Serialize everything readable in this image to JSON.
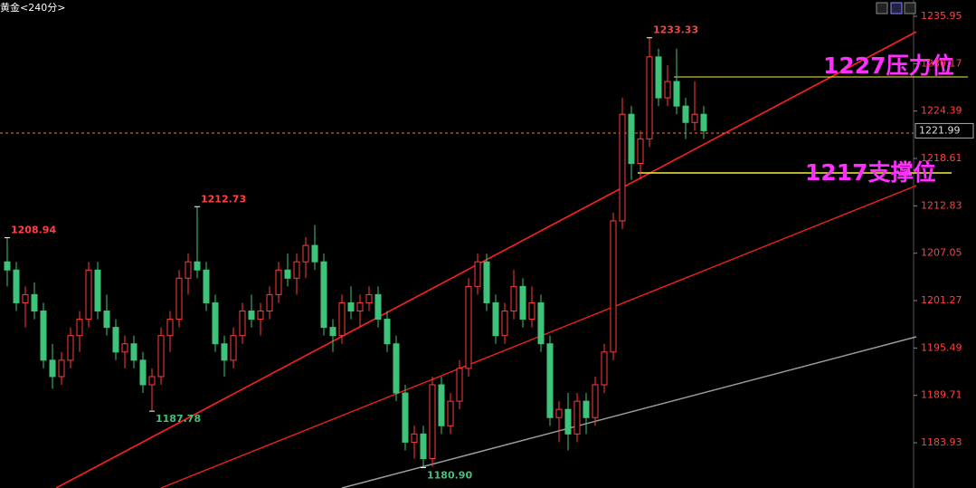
{
  "chart_data": {
    "type": "candlestick",
    "title": "黄金<240分>",
    "up_color": "#ff3c3c",
    "down_color": "#3ec37a",
    "ylim": [
      1178.41,
      1237.94
    ],
    "yticks": [
      1235.95,
      1230.17,
      1224.39,
      1218.61,
      1212.83,
      1207.05,
      1201.27,
      1195.49,
      1189.71,
      1183.93
    ],
    "ohlc": [
      [
        1206,
        1208.94,
        1203,
        1205
      ],
      [
        1205,
        1206,
        1200,
        1201
      ],
      [
        1201,
        1203,
        1198,
        1202
      ],
      [
        1202,
        1203.5,
        1199,
        1200
      ],
      [
        1200,
        1201,
        1193,
        1194
      ],
      [
        1194,
        1196,
        1190.5,
        1192
      ],
      [
        1192,
        1195,
        1191,
        1194
      ],
      [
        1194,
        1198,
        1193,
        1197
      ],
      [
        1197,
        1200,
        1195,
        1199
      ],
      [
        1199,
        1206,
        1198,
        1205
      ],
      [
        1205,
        1206,
        1199,
        1200
      ],
      [
        1200,
        1202,
        1197,
        1198
      ],
      [
        1198,
        1199,
        1194,
        1195
      ],
      [
        1195,
        1197,
        1193,
        1196
      ],
      [
        1196,
        1197,
        1193,
        1194
      ],
      [
        1194,
        1195,
        1190,
        1191
      ],
      [
        1191,
        1193,
        1187.78,
        1192
      ],
      [
        1192,
        1198,
        1191,
        1197
      ],
      [
        1197,
        1200,
        1195,
        1199
      ],
      [
        1199,
        1205,
        1198,
        1204
      ],
      [
        1204,
        1207,
        1202,
        1206
      ],
      [
        1206,
        1212.73,
        1204,
        1205
      ],
      [
        1205,
        1206,
        1200,
        1201
      ],
      [
        1201,
        1202,
        1195,
        1196
      ],
      [
        1196,
        1197,
        1192,
        1194
      ],
      [
        1194,
        1198,
        1193,
        1197
      ],
      [
        1197,
        1201,
        1196,
        1200
      ],
      [
        1200,
        1202,
        1198,
        1199
      ],
      [
        1199,
        1201,
        1197,
        1200
      ],
      [
        1200,
        1203,
        1199,
        1202
      ],
      [
        1202,
        1206,
        1201,
        1205
      ],
      [
        1205,
        1207,
        1203,
        1204
      ],
      [
        1204,
        1207,
        1202,
        1206
      ],
      [
        1206,
        1209,
        1204,
        1208
      ],
      [
        1208,
        1210.5,
        1205,
        1206
      ],
      [
        1206,
        1207,
        1197,
        1198
      ],
      [
        1198,
        1199,
        1195,
        1197
      ],
      [
        1197,
        1202,
        1196,
        1201
      ],
      [
        1201,
        1203,
        1199,
        1200
      ],
      [
        1200,
        1202,
        1198,
        1201
      ],
      [
        1201,
        1203,
        1200,
        1202
      ],
      [
        1202,
        1203,
        1198,
        1199
      ],
      [
        1199,
        1200,
        1195,
        1196
      ],
      [
        1196,
        1197,
        1189,
        1190
      ],
      [
        1190,
        1191,
        1183,
        1184
      ],
      [
        1184,
        1186,
        1182,
        1185
      ],
      [
        1185,
        1186,
        1180.9,
        1182
      ],
      [
        1182,
        1192,
        1181,
        1191
      ],
      [
        1191,
        1192,
        1185,
        1186
      ],
      [
        1186,
        1190,
        1185,
        1189
      ],
      [
        1189,
        1194,
        1188,
        1193
      ],
      [
        1193,
        1204,
        1192,
        1203
      ],
      [
        1203,
        1207,
        1202,
        1206
      ],
      [
        1206,
        1207,
        1200,
        1201
      ],
      [
        1201,
        1202,
        1196,
        1197
      ],
      [
        1197,
        1201,
        1196,
        1200
      ],
      [
        1200,
        1205,
        1199,
        1203
      ],
      [
        1203,
        1204,
        1198,
        1199
      ],
      [
        1199,
        1203,
        1198,
        1201
      ],
      [
        1201,
        1202,
        1195,
        1196
      ],
      [
        1196,
        1197,
        1186,
        1187
      ],
      [
        1187,
        1189,
        1184,
        1188
      ],
      [
        1188,
        1190,
        1183,
        1185
      ],
      [
        1185,
        1190,
        1184,
        1189
      ],
      [
        1189,
        1190,
        1185,
        1187
      ],
      [
        1187,
        1192,
        1186,
        1191
      ],
      [
        1191,
        1196,
        1190,
        1195
      ],
      [
        1195,
        1212,
        1194,
        1211
      ],
      [
        1211,
        1226,
        1210,
        1224
      ],
      [
        1224,
        1225,
        1216,
        1218
      ],
      [
        1218,
        1222,
        1216,
        1221
      ],
      [
        1221,
        1233.33,
        1220,
        1231
      ],
      [
        1231,
        1232,
        1225,
        1226
      ],
      [
        1226,
        1230,
        1225,
        1228
      ],
      [
        1228,
        1232,
        1224,
        1225
      ],
      [
        1225,
        1226,
        1221,
        1223
      ],
      [
        1223,
        1228,
        1222,
        1224
      ],
      [
        1224,
        1225,
        1221,
        1221.99
      ]
    ],
    "extreme_labels": [
      {
        "value": 1208.94,
        "label": "1208.94"
      },
      {
        "value": 1187.78,
        "label": "1187.78"
      },
      {
        "value": 1212.73,
        "label": "1212.73"
      },
      {
        "value": 1180.9,
        "label": "1180.90"
      },
      {
        "value": 1233.33,
        "label": "1233.33"
      }
    ],
    "annotations": [
      "1227压力位",
      "1217支撑位"
    ]
  }
}
